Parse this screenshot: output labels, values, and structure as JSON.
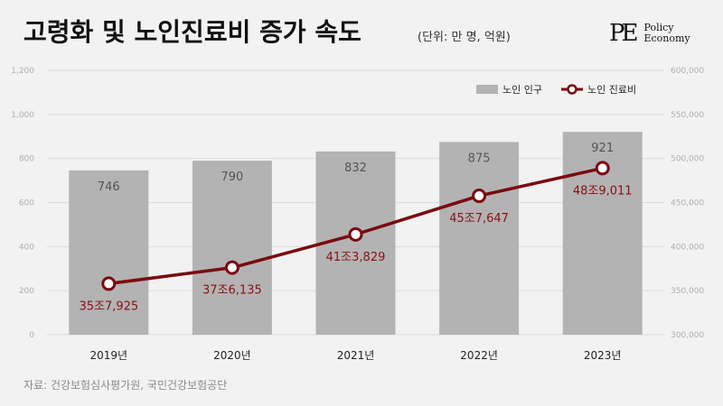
{
  "header": {
    "title": "고령화 및 노인진료비 증가 속도",
    "unit": "(단위: 만 명, 억원)"
  },
  "logo": {
    "mark": "PE",
    "line1": "Policy",
    "line2": "Economy"
  },
  "source": "자료: 건강보험심사평가원, 국민건강보험공단",
  "colors": {
    "bar": "#b3b3b3",
    "line": "#7b0a10",
    "background": "#f2f2f2"
  },
  "chart_data": {
    "type": "bar",
    "categories": [
      "2019년",
      "2020년",
      "2021년",
      "2022년",
      "2023년"
    ],
    "series": [
      {
        "name": "노인 인구",
        "type": "bar",
        "axis": "left",
        "values": [
          746,
          790,
          832,
          875,
          921
        ],
        "labels": [
          "746",
          "790",
          "832",
          "875",
          "921"
        ]
      },
      {
        "name": "노인 진료비",
        "type": "line",
        "axis": "right",
        "values": [
          357925,
          376135,
          413829,
          457647,
          489011
        ],
        "labels": [
          "35조7,925",
          "37조6,135",
          "41조3,829",
          "45조7,647",
          "48조9,011"
        ]
      }
    ],
    "y_left": {
      "ylim": [
        0,
        1200
      ],
      "ticks": [
        "0",
        "200",
        "400",
        "600",
        "800",
        "1,000",
        "1,200"
      ]
    },
    "y_right": {
      "ylim": [
        300000,
        600000
      ],
      "ticks": [
        "300,000",
        "350,000",
        "400,000",
        "450,000",
        "500,000",
        "550,000",
        "600,000"
      ]
    },
    "grid": true,
    "legend": "top-right"
  }
}
